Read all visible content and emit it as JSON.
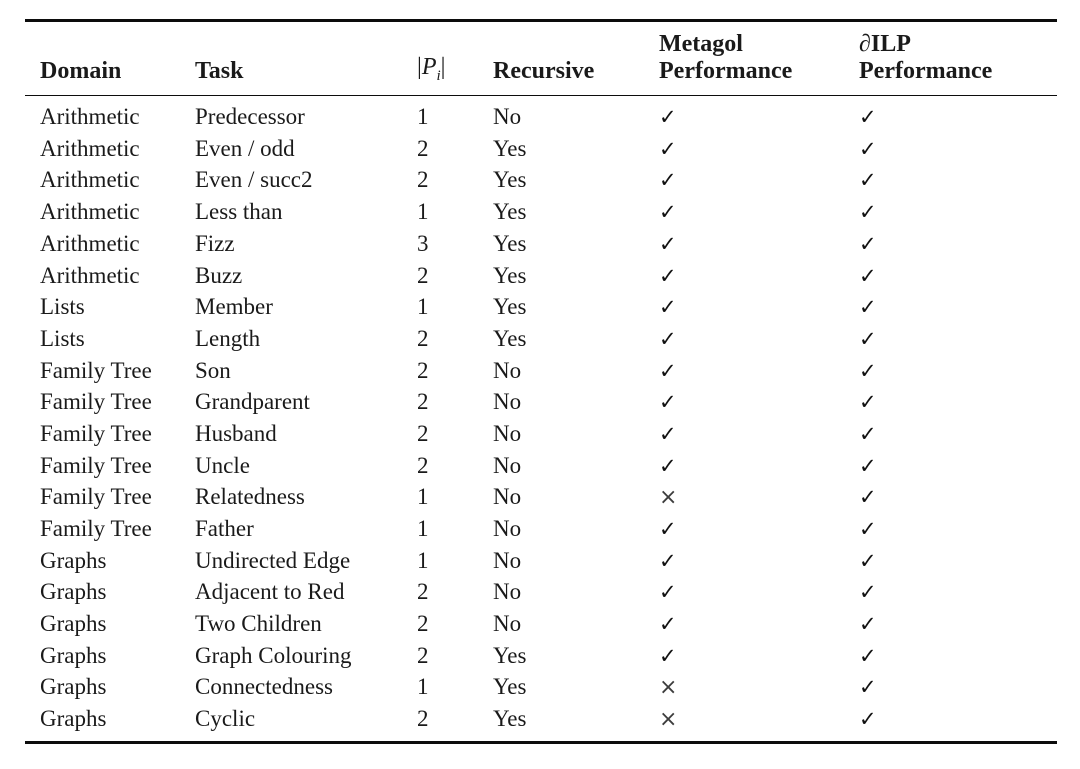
{
  "table": {
    "headers": {
      "domain": "Domain",
      "task": "Task",
      "pi": {
        "open": "|",
        "letter": "P",
        "sub": "i",
        "close": "|"
      },
      "recursive": "Recursive",
      "metagol": {
        "line1": "Metagol",
        "line2": "Performance"
      },
      "dilp": {
        "line1": "∂ILP",
        "line2": "Performance"
      }
    },
    "marks": {
      "pass": "✓",
      "fail": "×"
    },
    "rows": [
      {
        "domain": "Arithmetic",
        "task": "Predecessor",
        "pi": "1",
        "recursive": "No",
        "metagol": "pass",
        "dilp": "pass"
      },
      {
        "domain": "Arithmetic",
        "task": "Even / odd",
        "pi": "2",
        "recursive": "Yes",
        "metagol": "pass",
        "dilp": "pass"
      },
      {
        "domain": "Arithmetic",
        "task": "Even / succ2",
        "pi": "2",
        "recursive": "Yes",
        "metagol": "pass",
        "dilp": "pass"
      },
      {
        "domain": "Arithmetic",
        "task": "Less than",
        "pi": "1",
        "recursive": "Yes",
        "metagol": "pass",
        "dilp": "pass"
      },
      {
        "domain": "Arithmetic",
        "task": "Fizz",
        "pi": "3",
        "recursive": "Yes",
        "metagol": "pass",
        "dilp": "pass"
      },
      {
        "domain": "Arithmetic",
        "task": "Buzz",
        "pi": "2",
        "recursive": "Yes",
        "metagol": "pass",
        "dilp": "pass"
      },
      {
        "domain": "Lists",
        "task": "Member",
        "pi": "1",
        "recursive": "Yes",
        "metagol": "pass",
        "dilp": "pass"
      },
      {
        "domain": "Lists",
        "task": "Length",
        "pi": "2",
        "recursive": "Yes",
        "metagol": "pass",
        "dilp": "pass"
      },
      {
        "domain": "Family Tree",
        "task": "Son",
        "pi": "2",
        "recursive": "No",
        "metagol": "pass",
        "dilp": "pass"
      },
      {
        "domain": "Family Tree",
        "task": "Grandparent",
        "pi": "2",
        "recursive": "No",
        "metagol": "pass",
        "dilp": "pass"
      },
      {
        "domain": "Family Tree",
        "task": "Husband",
        "pi": "2",
        "recursive": "No",
        "metagol": "pass",
        "dilp": "pass"
      },
      {
        "domain": "Family Tree",
        "task": "Uncle",
        "pi": "2",
        "recursive": "No",
        "metagol": "pass",
        "dilp": "pass"
      },
      {
        "domain": "Family Tree",
        "task": "Relatedness",
        "pi": "1",
        "recursive": "No",
        "metagol": "fail",
        "dilp": "pass"
      },
      {
        "domain": "Family Tree",
        "task": "Father",
        "pi": "1",
        "recursive": "No",
        "metagol": "pass",
        "dilp": "pass"
      },
      {
        "domain": "Graphs",
        "task": "Undirected Edge",
        "pi": "1",
        "recursive": "No",
        "metagol": "pass",
        "dilp": "pass"
      },
      {
        "domain": "Graphs",
        "task": "Adjacent to Red",
        "pi": "2",
        "recursive": "No",
        "metagol": "pass",
        "dilp": "pass"
      },
      {
        "domain": "Graphs",
        "task": "Two Children",
        "pi": "2",
        "recursive": "No",
        "metagol": "pass",
        "dilp": "pass"
      },
      {
        "domain": "Graphs",
        "task": "Graph Colouring",
        "pi": "2",
        "recursive": "Yes",
        "metagol": "pass",
        "dilp": "pass"
      },
      {
        "domain": "Graphs",
        "task": "Connectedness",
        "pi": "1",
        "recursive": "Yes",
        "metagol": "fail",
        "dilp": "pass"
      },
      {
        "domain": "Graphs",
        "task": "Cyclic",
        "pi": "2",
        "recursive": "Yes",
        "metagol": "fail",
        "dilp": "pass"
      }
    ]
  }
}
